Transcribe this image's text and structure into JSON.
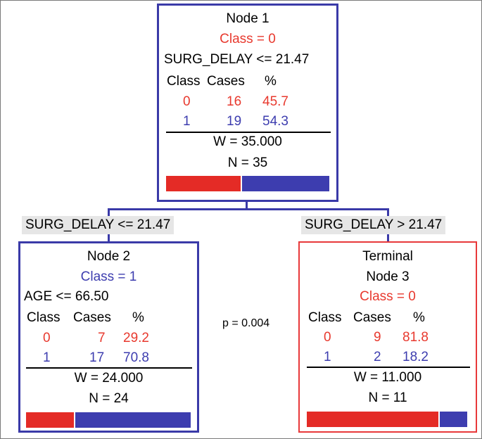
{
  "node1": {
    "title": "Node 1",
    "class_label": "Class = 0",
    "split": "SURG_DELAY <= 21.47",
    "headers": [
      "Class",
      "Cases",
      "%"
    ],
    "rows": [
      {
        "cls": "0",
        "cases": "16",
        "pct": "45.7"
      },
      {
        "cls": "1",
        "cases": "19",
        "pct": "54.3"
      }
    ],
    "w": "W = 35.000",
    "n": "N = 35",
    "bar": {
      "red_fraction": 0.457,
      "blue_fraction": 0.543
    }
  },
  "split_left": "SURG_DELAY <= 21.47",
  "split_right": "SURG_DELAY >  21.47",
  "p_value": "p = 0.004",
  "node2": {
    "title": "Node 2",
    "class_label": "Class = 1",
    "split": "AGE <= 66.50",
    "headers": [
      "Class",
      "Cases",
      "%"
    ],
    "rows": [
      {
        "cls": "0",
        "cases": "7",
        "pct": "29.2"
      },
      {
        "cls": "1",
        "cases": "17",
        "pct": "70.8"
      }
    ],
    "w": "W = 24.000",
    "n": "N = 24",
    "bar": {
      "red_fraction": 0.292,
      "blue_fraction": 0.708
    }
  },
  "node3": {
    "title_line1": "Terminal",
    "title_line2": "Node 3",
    "class_label": "Class = 0",
    "headers": [
      "Class",
      "Cases",
      "%"
    ],
    "rows": [
      {
        "cls": "0",
        "cases": "9",
        "pct": "81.8"
      },
      {
        "cls": "1",
        "cases": "2",
        "pct": "18.2"
      }
    ],
    "w": "W = 11.000",
    "n": "N = 11",
    "bar": {
      "red_fraction": 0.818,
      "blue_fraction": 0.182
    }
  },
  "colors": {
    "class0": "#e8392e",
    "class1": "#3d3daf",
    "node_border": "#3a3aa8",
    "terminal_border": "#e8393a"
  }
}
